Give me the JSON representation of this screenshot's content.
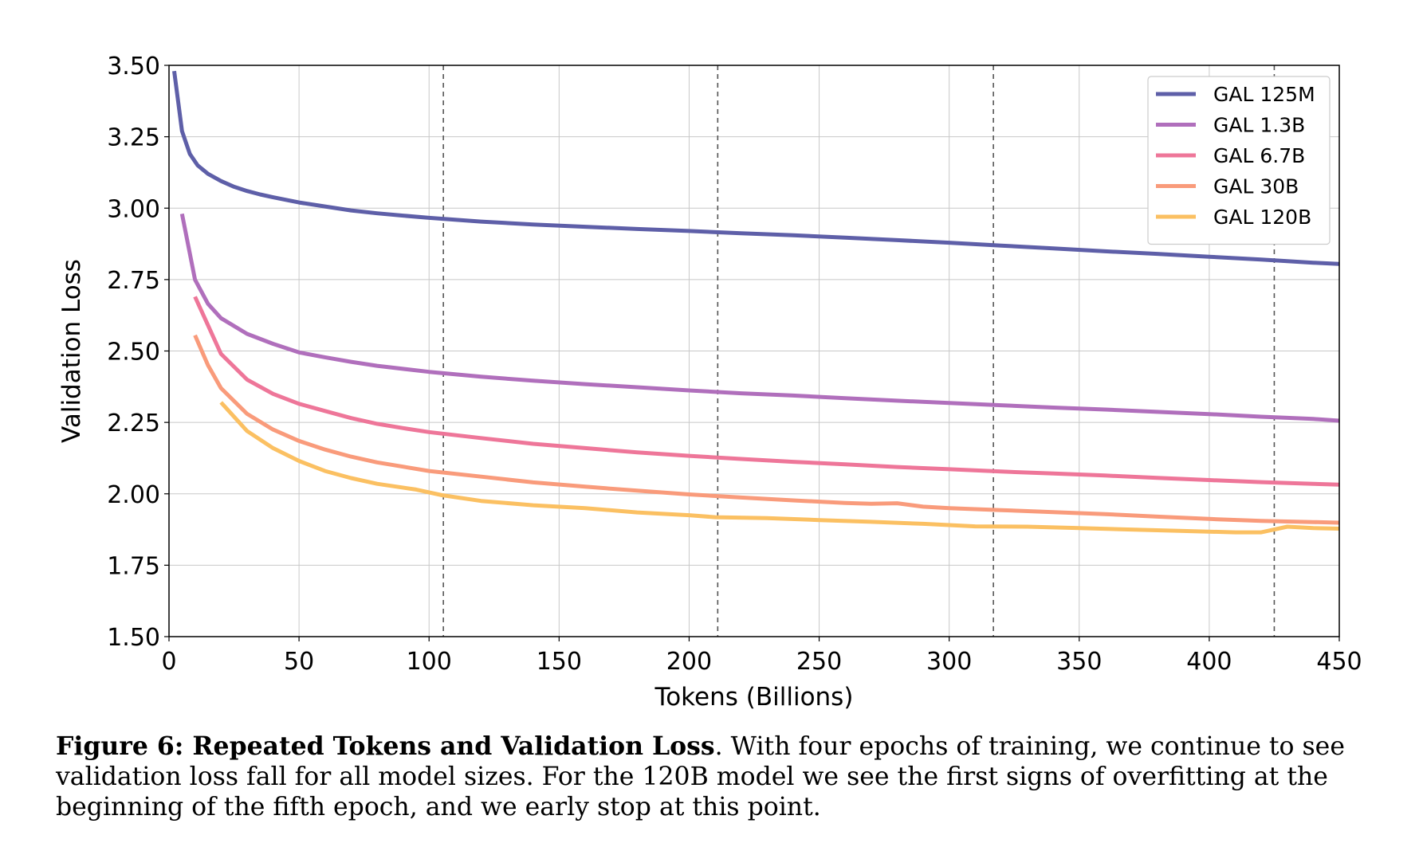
{
  "chart_data": {
    "type": "line",
    "xlabel": "Tokens (Billions)",
    "ylabel": "Validation Loss",
    "xlim": [
      0,
      450
    ],
    "ylim": [
      1.5,
      3.5
    ],
    "xticks": [
      "0",
      "50",
      "100",
      "150",
      "200",
      "250",
      "300",
      "350",
      "400",
      "450"
    ],
    "yticks": [
      "1.50",
      "1.75",
      "2.00",
      "2.25",
      "2.50",
      "2.75",
      "3.00",
      "3.25",
      "3.50"
    ],
    "grid": true,
    "legend_position": "top-right",
    "epoch_boundaries": [
      105.5,
      211,
      317,
      425
    ],
    "series": [
      {
        "name": "GAL 125M",
        "color": "#5e5fa8",
        "points": [
          [
            2,
            3.48
          ],
          [
            5,
            3.27
          ],
          [
            8,
            3.19
          ],
          [
            11,
            3.15
          ],
          [
            15,
            3.12
          ],
          [
            20,
            3.095
          ],
          [
            25,
            3.075
          ],
          [
            30,
            3.06
          ],
          [
            35,
            3.048
          ],
          [
            40,
            3.038
          ],
          [
            50,
            3.02
          ],
          [
            60,
            3.006
          ],
          [
            70,
            2.992
          ],
          [
            80,
            2.982
          ],
          [
            90,
            2.974
          ],
          [
            100,
            2.966
          ],
          [
            120,
            2.953
          ],
          [
            140,
            2.943
          ],
          [
            160,
            2.935
          ],
          [
            180,
            2.927
          ],
          [
            200,
            2.92
          ],
          [
            220,
            2.912
          ],
          [
            240,
            2.905
          ],
          [
            260,
            2.897
          ],
          [
            280,
            2.888
          ],
          [
            300,
            2.879
          ],
          [
            320,
            2.869
          ],
          [
            340,
            2.859
          ],
          [
            360,
            2.849
          ],
          [
            380,
            2.84
          ],
          [
            400,
            2.83
          ],
          [
            420,
            2.82
          ],
          [
            440,
            2.809
          ],
          [
            450,
            2.805
          ]
        ]
      },
      {
        "name": "GAL 1.3B",
        "color": "#b06fbc",
        "points": [
          [
            5,
            2.98
          ],
          [
            10,
            2.75
          ],
          [
            15,
            2.665
          ],
          [
            20,
            2.615
          ],
          [
            30,
            2.56
          ],
          [
            40,
            2.525
          ],
          [
            50,
            2.495
          ],
          [
            60,
            2.478
          ],
          [
            70,
            2.462
          ],
          [
            80,
            2.448
          ],
          [
            100,
            2.427
          ],
          [
            120,
            2.41
          ],
          [
            140,
            2.396
          ],
          [
            160,
            2.384
          ],
          [
            180,
            2.373
          ],
          [
            200,
            2.362
          ],
          [
            220,
            2.352
          ],
          [
            240,
            2.344
          ],
          [
            260,
            2.335
          ],
          [
            280,
            2.326
          ],
          [
            300,
            2.318
          ],
          [
            320,
            2.31
          ],
          [
            340,
            2.302
          ],
          [
            360,
            2.295
          ],
          [
            380,
            2.287
          ],
          [
            400,
            2.279
          ],
          [
            420,
            2.27
          ],
          [
            440,
            2.262
          ],
          [
            450,
            2.256
          ]
        ]
      },
      {
        "name": "GAL 6.7B",
        "color": "#ee7699",
        "points": [
          [
            10,
            2.69
          ],
          [
            15,
            2.59
          ],
          [
            20,
            2.49
          ],
          [
            30,
            2.4
          ],
          [
            40,
            2.35
          ],
          [
            50,
            2.315
          ],
          [
            60,
            2.29
          ],
          [
            70,
            2.265
          ],
          [
            80,
            2.245
          ],
          [
            90,
            2.23
          ],
          [
            100,
            2.216
          ],
          [
            120,
            2.195
          ],
          [
            140,
            2.175
          ],
          [
            160,
            2.16
          ],
          [
            180,
            2.145
          ],
          [
            200,
            2.133
          ],
          [
            220,
            2.122
          ],
          [
            240,
            2.112
          ],
          [
            260,
            2.103
          ],
          [
            280,
            2.094
          ],
          [
            300,
            2.086
          ],
          [
            320,
            2.078
          ],
          [
            340,
            2.071
          ],
          [
            360,
            2.064
          ],
          [
            380,
            2.056
          ],
          [
            400,
            2.048
          ],
          [
            420,
            2.041
          ],
          [
            440,
            2.035
          ],
          [
            450,
            2.032
          ]
        ]
      },
      {
        "name": "GAL 30B",
        "color": "#f99b7b",
        "points": [
          [
            10,
            2.555
          ],
          [
            15,
            2.45
          ],
          [
            20,
            2.37
          ],
          [
            30,
            2.28
          ],
          [
            40,
            2.225
          ],
          [
            50,
            2.185
          ],
          [
            60,
            2.155
          ],
          [
            70,
            2.13
          ],
          [
            80,
            2.11
          ],
          [
            90,
            2.095
          ],
          [
            100,
            2.08
          ],
          [
            120,
            2.06
          ],
          [
            140,
            2.04
          ],
          [
            160,
            2.025
          ],
          [
            180,
            2.011
          ],
          [
            200,
            1.998
          ],
          [
            220,
            1.987
          ],
          [
            240,
            1.977
          ],
          [
            260,
            1.968
          ],
          [
            270,
            1.965
          ],
          [
            280,
            1.967
          ],
          [
            290,
            1.955
          ],
          [
            300,
            1.95
          ],
          [
            320,
            1.943
          ],
          [
            340,
            1.936
          ],
          [
            360,
            1.929
          ],
          [
            380,
            1.92
          ],
          [
            400,
            1.912
          ],
          [
            420,
            1.905
          ],
          [
            440,
            1.901
          ],
          [
            450,
            1.899
          ]
        ]
      },
      {
        "name": "GAL 120B",
        "color": "#fbc062",
        "points": [
          [
            20,
            2.32
          ],
          [
            30,
            2.22
          ],
          [
            40,
            2.16
          ],
          [
            50,
            2.115
          ],
          [
            60,
            2.08
          ],
          [
            70,
            2.055
          ],
          [
            80,
            2.035
          ],
          [
            95,
            2.015
          ],
          [
            105,
            1.995
          ],
          [
            120,
            1.975
          ],
          [
            140,
            1.96
          ],
          [
            160,
            1.95
          ],
          [
            180,
            1.935
          ],
          [
            200,
            1.925
          ],
          [
            210,
            1.918
          ],
          [
            230,
            1.915
          ],
          [
            250,
            1.908
          ],
          [
            270,
            1.902
          ],
          [
            290,
            1.895
          ],
          [
            310,
            1.886
          ],
          [
            330,
            1.885
          ],
          [
            350,
            1.88
          ],
          [
            370,
            1.875
          ],
          [
            390,
            1.87
          ],
          [
            410,
            1.865
          ],
          [
            420,
            1.865
          ],
          [
            430,
            1.885
          ],
          [
            440,
            1.88
          ],
          [
            450,
            1.878
          ]
        ]
      }
    ]
  },
  "caption": {
    "bold": "Figure 6: Repeated Tokens and Validation Loss",
    "text": ". With four epochs of training, we continue to see validation loss fall for all model sizes. For the 120B model we see the first signs of overfitting at the beginning of the fifth epoch, and we early stop at this point."
  }
}
